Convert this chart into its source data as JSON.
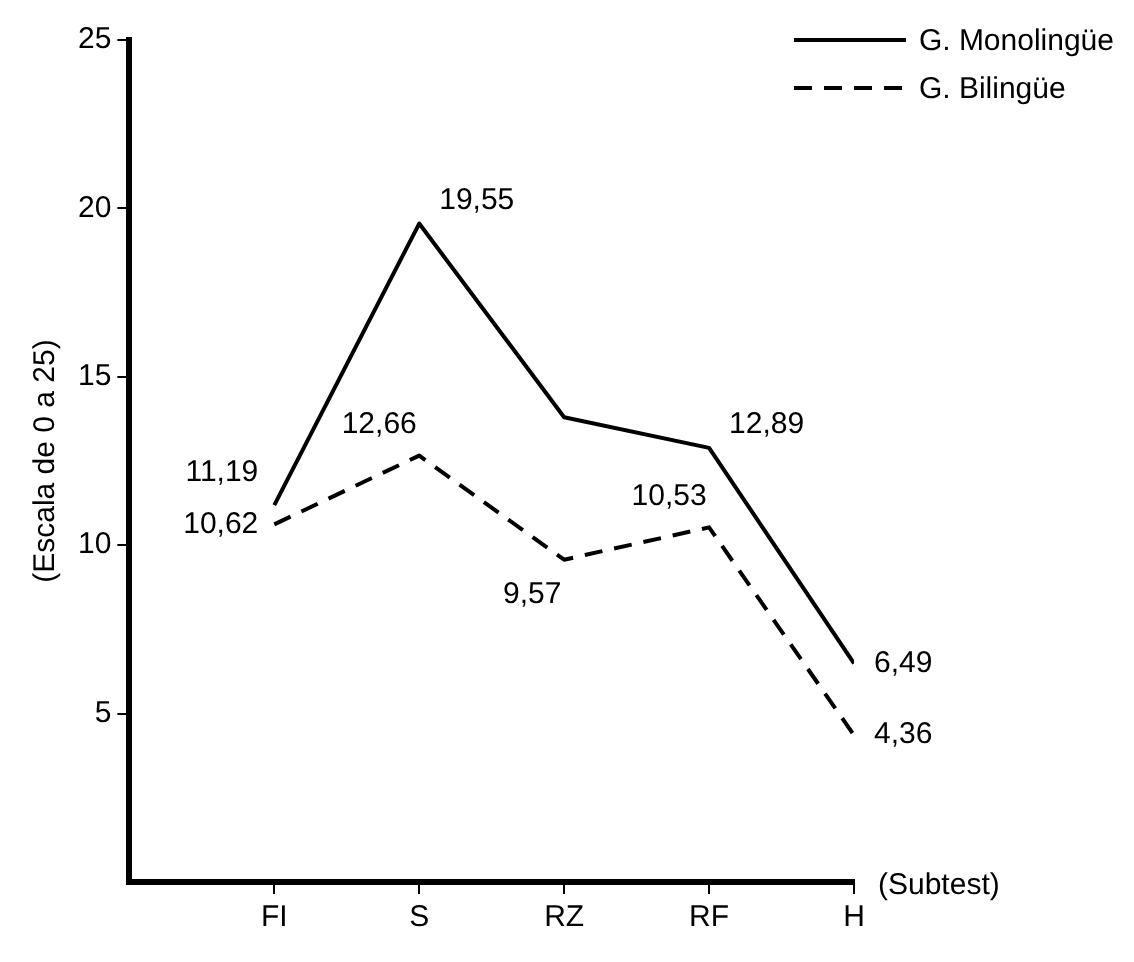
{
  "chart_data": {
    "type": "line",
    "xlabel": "(Subtest)",
    "ylabel": "(Escala de 0 a 25)",
    "categories": [
      "FI",
      "S",
      "RZ",
      "RF",
      "H"
    ],
    "series": [
      {
        "name": "G. Monolingüe",
        "color": "#000000",
        "line_style": "solid",
        "values": [
          11.19,
          19.55,
          13.8,
          12.89,
          6.49
        ],
        "value_labels": [
          "11,19",
          "19,55",
          null,
          "12,89",
          "6,49"
        ]
      },
      {
        "name": "G. Bilingüe",
        "color": "#000000",
        "line_style": "dashed",
        "values": [
          10.62,
          12.66,
          9.57,
          10.53,
          4.36
        ],
        "value_labels": [
          "10,62",
          "12,66",
          "9,57",
          "10,53",
          "4,36"
        ]
      }
    ],
    "ylim": [
      0,
      25
    ],
    "yticks": [
      5,
      10,
      15,
      20,
      25
    ],
    "grid": false,
    "legend": "top right",
    "marker": "none"
  }
}
